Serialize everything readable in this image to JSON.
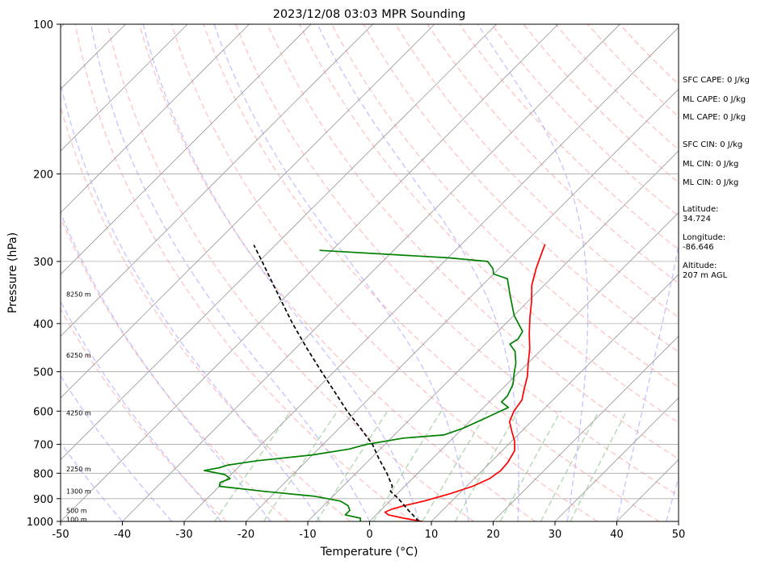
{
  "chart_data": {
    "type": "line",
    "title": "2023/12/08 03:03 MPR Sounding",
    "xlabel": "Temperature (°C)",
    "ylabel": "Pressure (hPa)",
    "xlim": [
      -50,
      50
    ],
    "ylim": [
      1000,
      100
    ],
    "y_scale": "log",
    "skew": "skew-T",
    "grid": true,
    "x_ticks": [
      -50,
      -40,
      -30,
      -20,
      -10,
      0,
      10,
      20,
      30,
      40,
      50
    ],
    "y_ticks": [
      1000,
      900,
      800,
      700,
      600,
      500,
      400,
      300,
      200,
      100
    ],
    "series": [
      {
        "color": "#ff0000",
        "points": [
          [
            1000,
            8.5
          ],
          [
            985,
            5.0
          ],
          [
            970,
            2.0
          ],
          [
            958,
            1.0
          ],
          [
            945,
            1.6
          ],
          [
            930,
            3.0
          ],
          [
            910,
            5.5
          ],
          [
            880,
            8.5
          ],
          [
            850,
            11.0
          ],
          [
            820,
            12.5
          ],
          [
            790,
            13.0
          ],
          [
            760,
            12.8
          ],
          [
            720,
            12.0
          ],
          [
            690,
            10.5
          ],
          [
            660,
            8.5
          ],
          [
            630,
            6.5
          ],
          [
            600,
            5.5
          ],
          [
            570,
            5.0
          ],
          [
            540,
            3.5
          ],
          [
            510,
            2.0
          ],
          [
            480,
            0.0
          ],
          [
            450,
            -2.0
          ],
          [
            420,
            -4.5
          ],
          [
            390,
            -7.0
          ],
          [
            360,
            -9.5
          ],
          [
            335,
            -12.0
          ],
          [
            310,
            -14.0
          ],
          [
            290,
            -15.5
          ],
          [
            277,
            -16.5
          ]
        ]
      },
      {
        "color": "#008000",
        "points": [
          [
            1000,
            -1.5
          ],
          [
            985,
            -2.0
          ],
          [
            970,
            -5.0
          ],
          [
            950,
            -5.0
          ],
          [
            930,
            -6.0
          ],
          [
            910,
            -8.0
          ],
          [
            890,
            -13.0
          ],
          [
            870,
            -22.0
          ],
          [
            850,
            -30.0
          ],
          [
            835,
            -30.5
          ],
          [
            820,
            -29.5
          ],
          [
            805,
            -31.0
          ],
          [
            790,
            -35.0
          ],
          [
            780,
            -33.0
          ],
          [
            770,
            -32.0
          ],
          [
            755,
            -28.0
          ],
          [
            735,
            -20.0
          ],
          [
            715,
            -15.0
          ],
          [
            700,
            -13.0
          ],
          [
            680,
            -8.0
          ],
          [
            670,
            -2.0
          ],
          [
            650,
            0.0
          ],
          [
            620,
            2.0
          ],
          [
            590,
            4.0
          ],
          [
            575,
            2.0
          ],
          [
            560,
            2.0
          ],
          [
            530,
            1.0
          ],
          [
            505,
            -0.5
          ],
          [
            480,
            -2.0
          ],
          [
            455,
            -4.0
          ],
          [
            440,
            -6.0
          ],
          [
            430,
            -5.5
          ],
          [
            415,
            -6.0
          ],
          [
            385,
            -10.0
          ],
          [
            350,
            -14.0
          ],
          [
            325,
            -17.0
          ],
          [
            318,
            -20.0
          ],
          [
            310,
            -21.0
          ],
          [
            300,
            -23.0
          ],
          [
            295,
            -30.0
          ],
          [
            285,
            -52.0
          ]
        ]
      },
      {
        "color": "#000000",
        "dashed": true,
        "points": [
          [
            1000,
            8.0
          ],
          [
            950,
            4.5
          ],
          [
            900,
            1.0
          ],
          [
            870,
            -1.5
          ],
          [
            850,
            -2.0
          ],
          [
            800,
            -5.0
          ],
          [
            750,
            -8.5
          ],
          [
            700,
            -12.0
          ],
          [
            650,
            -16.5
          ],
          [
            600,
            -21.5
          ],
          [
            550,
            -26.5
          ],
          [
            500,
            -32.0
          ],
          [
            450,
            -38.0
          ],
          [
            400,
            -44.5
          ],
          [
            350,
            -51.5
          ],
          [
            300,
            -59.5
          ],
          [
            278,
            -63.5
          ]
        ]
      }
    ],
    "height_labels": [
      "100 m",
      "500 m",
      "1300 m",
      "2250 m",
      "4250 m",
      "6250 m",
      "8250 m"
    ],
    "height_label_pressures": [
      990,
      950,
      870,
      785,
      605,
      463,
      349
    ],
    "annotations": [
      "SFC CAPE: 0 J/kg",
      "ML CAPE: 0 J/kg",
      "ML CAPE: 0 J/kg",
      "SFC CIN: 0 J/kg",
      "ML CIN: 0 J/kg",
      "ML CIN: 0 J/kg",
      "Latitude:",
      "34.724",
      "Longitude:",
      "-86.646",
      "Altitude:",
      "207 m AGL"
    ]
  },
  "colors": {
    "temperature": "#ff0000",
    "dewpoint": "#008000",
    "parcel": "#000000",
    "dry_adiabats": "#ff9999",
    "moist_adiabats": "#9999ff",
    "mixing_ratio": "#80c080",
    "isotherms": "#999999",
    "isobars": "#aaaaaa"
  }
}
